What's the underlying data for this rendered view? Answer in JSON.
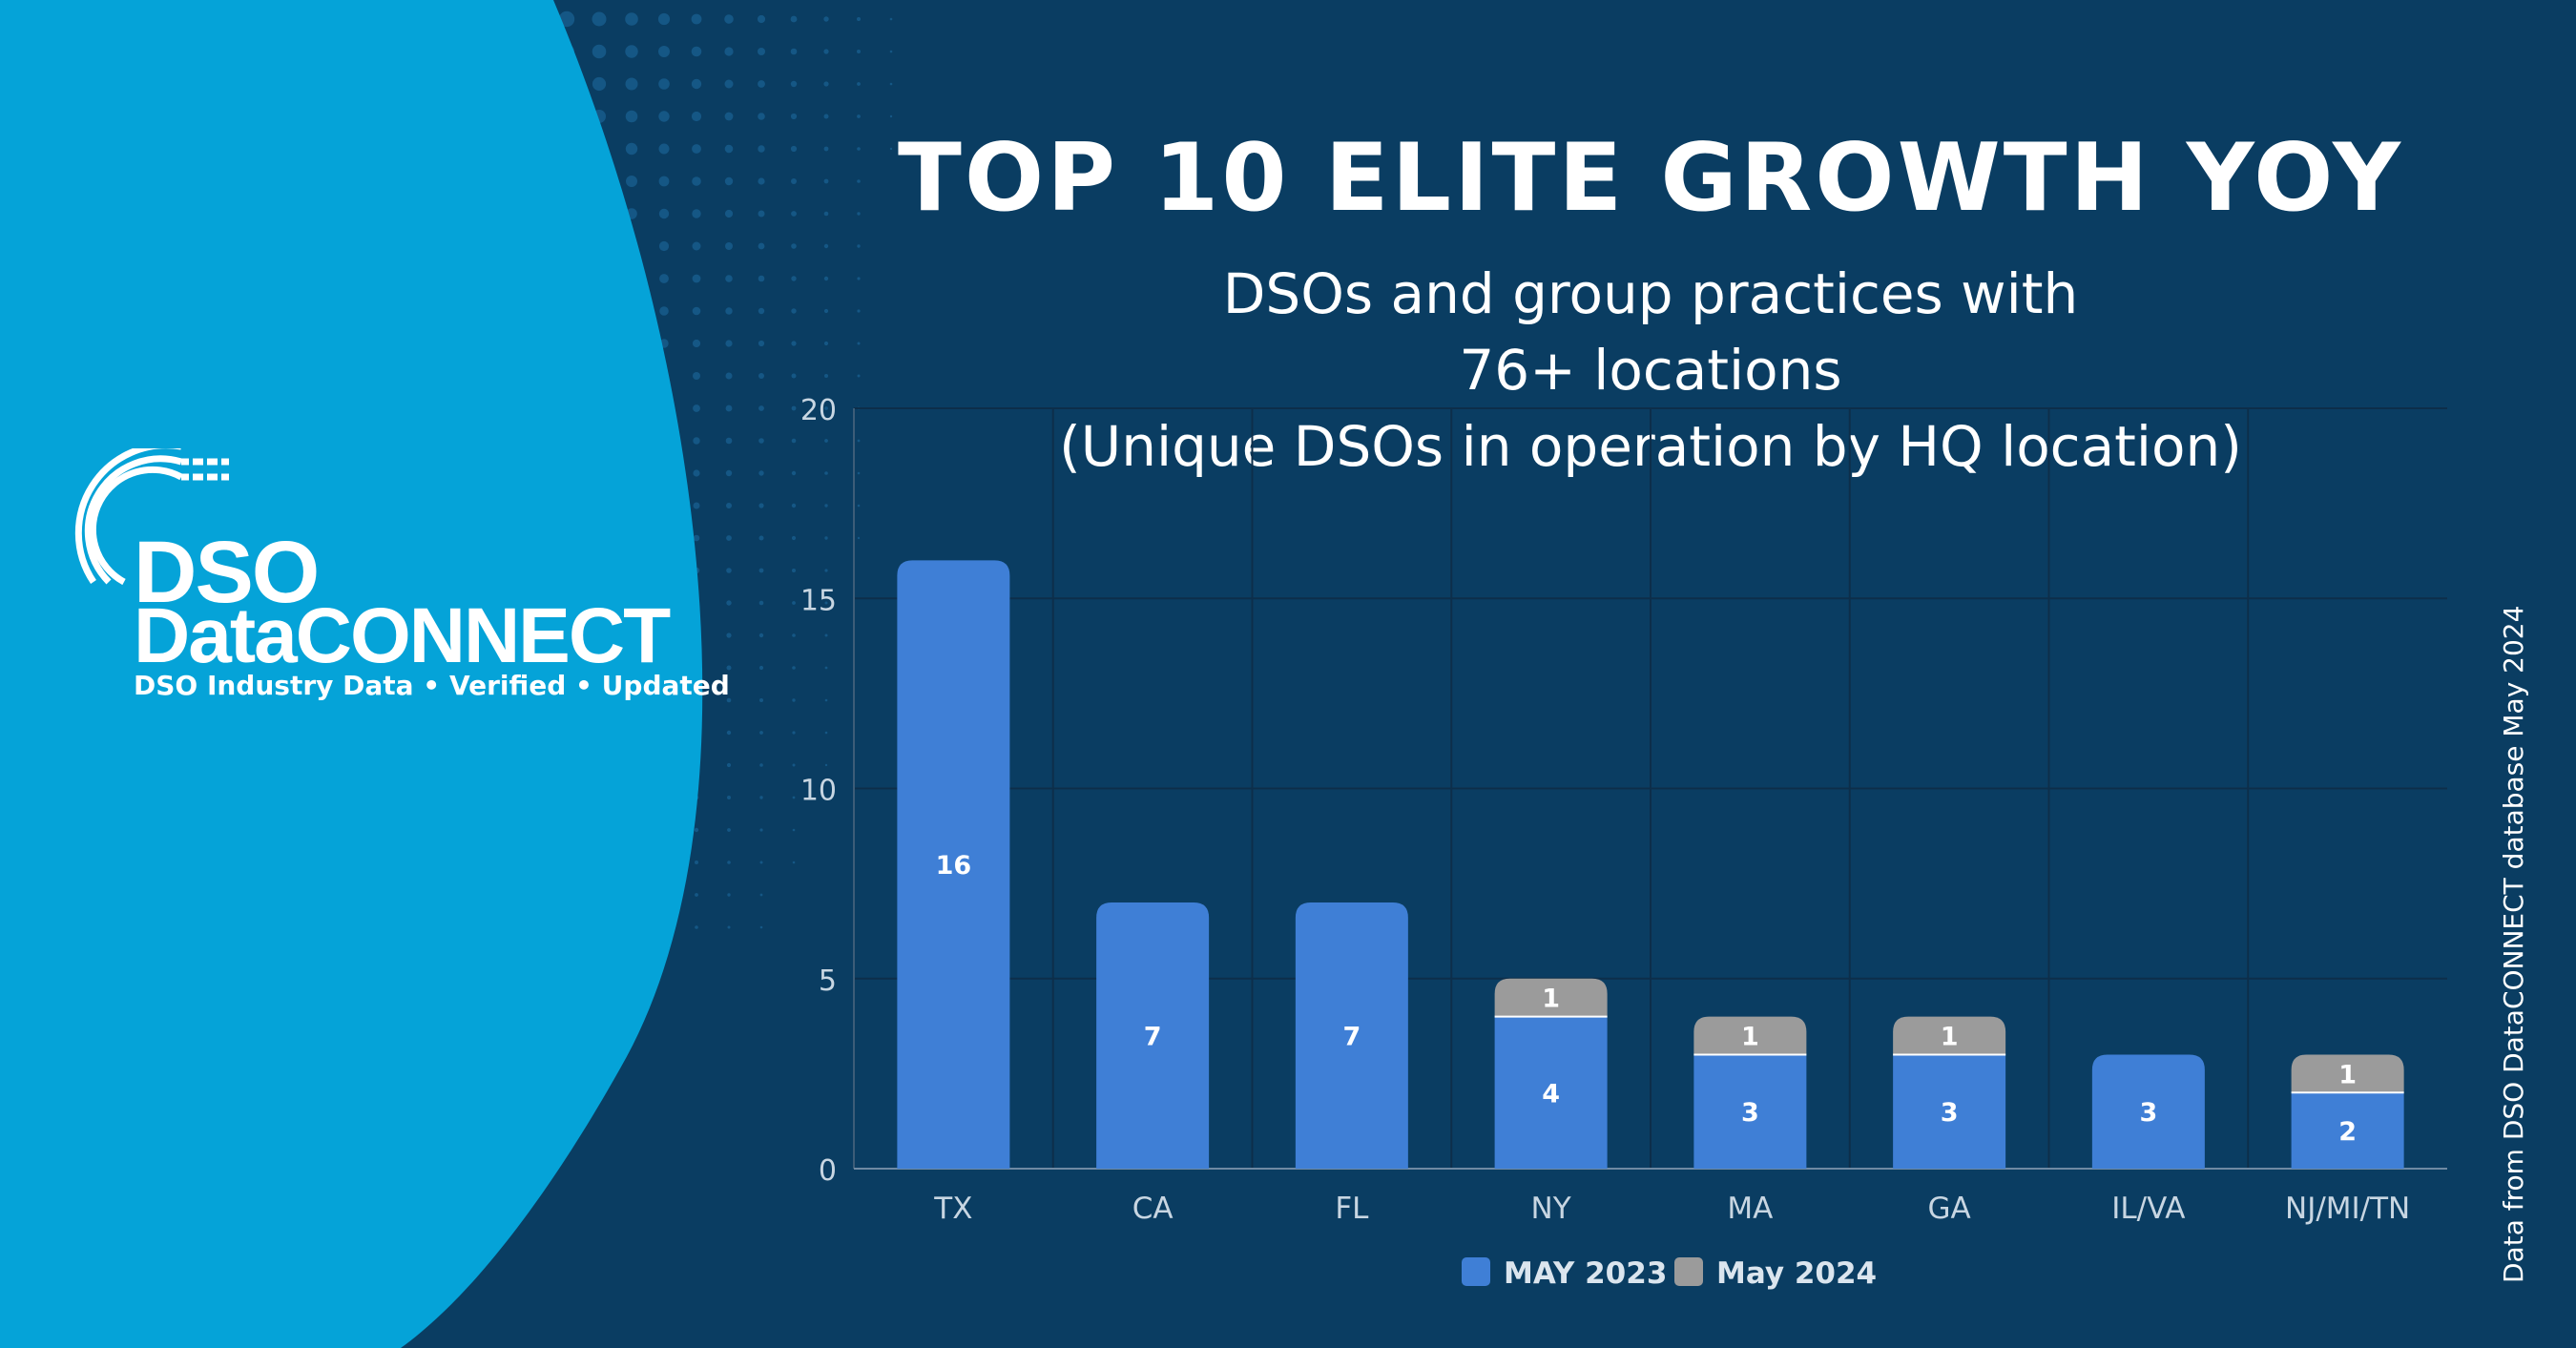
{
  "header": {
    "title": "TOP 10 ELITE GROWTH YOY",
    "subtitle_lines": [
      "DSOs and group practices with",
      "76+ locations",
      "(Unique DSOs in operation by HQ location)"
    ]
  },
  "logo": {
    "line1": "DSO",
    "line2": "DataCONNECT",
    "tagline": "DSO Industry Data • Verified • Updated"
  },
  "source_note": "Data from DSO DataCONNECT database May 2024",
  "colors": {
    "background": "#0a3d62",
    "circle": "#05a3d8",
    "may2023": "#3f7fd6",
    "may2024": "#9b9b9b"
  },
  "chart_data": {
    "type": "bar",
    "stacked": true,
    "categories": [
      "TX",
      "CA",
      "FL",
      "NY",
      "MA",
      "GA",
      "IL/VA",
      "NJ/MI/TN"
    ],
    "series": [
      {
        "name": "MAY 2023",
        "values": [
          16,
          7,
          7,
          4,
          3,
          3,
          3,
          2
        ]
      },
      {
        "name": "May 2024",
        "values": [
          0,
          0,
          0,
          1,
          1,
          1,
          0,
          1
        ]
      }
    ],
    "ylim": [
      0,
      20
    ],
    "yticks": [
      0,
      5,
      10,
      15,
      20
    ],
    "grid": true,
    "legend": "bottom",
    "xlabel": "",
    "ylabel": ""
  }
}
